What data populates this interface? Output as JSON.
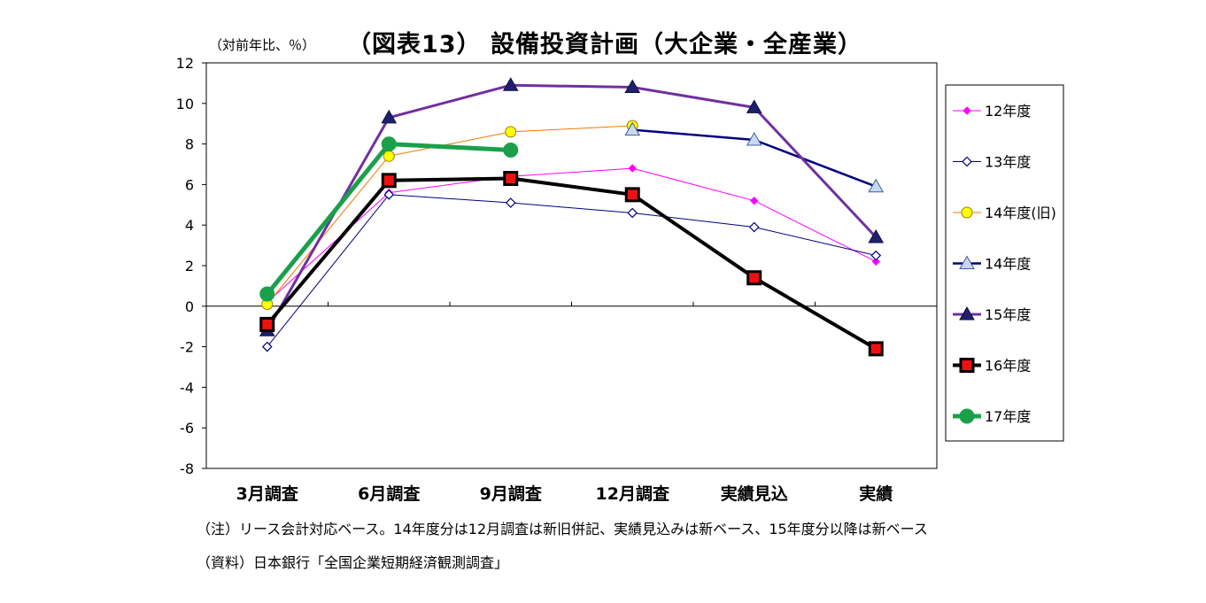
{
  "title": "（図表13） 設備投資計画（大企業・全産業）",
  "unit": "（対前年比、％）",
  "notes": [
    "（注）リース会計対応ベース。14年度分は12月調査は新旧併記、実績見込みは新ベース、15年度分以降は新ベース",
    "（資料）日本銀行「全国企業短期経済観測調査」"
  ],
  "chart_data": {
    "type": "line",
    "title": "（図表13） 設備投資計画（大企業・全産業）",
    "ylabel": "（対前年比、％）",
    "xlabel": "",
    "categories": [
      "3月調査",
      "6月調査",
      "9月調査",
      "12月調査",
      "実績見込",
      "実績"
    ],
    "ylim": [
      -8,
      12
    ],
    "yticks": [
      12,
      10,
      8,
      6,
      4,
      2,
      0,
      -2,
      -4,
      -6,
      -8
    ],
    "grid": false,
    "legend_position": "right",
    "series": [
      {
        "name": "12年度",
        "color": "#ff00ff",
        "marker": "diamond-filled",
        "values": [
          0.2,
          5.6,
          6.4,
          6.8,
          5.2,
          2.2
        ]
      },
      {
        "name": "13年度",
        "color": "#000080",
        "marker": "diamond-open",
        "values": [
          -2.0,
          5.5,
          5.1,
          4.6,
          3.9,
          2.5
        ]
      },
      {
        "name": "14年度(旧)",
        "color": "#f07800",
        "marker": "circle-yellow",
        "values": [
          0.1,
          7.4,
          8.6,
          8.9,
          null,
          null
        ]
      },
      {
        "name": "14年度",
        "color": "#000080",
        "marker": "triangle-open",
        "values": [
          null,
          null,
          null,
          8.7,
          8.2,
          5.9
        ]
      },
      {
        "name": "15年度",
        "color": "#7030a0",
        "marker": "triangle-filled",
        "values": [
          -1.2,
          9.3,
          10.9,
          10.8,
          9.8,
          3.4
        ]
      },
      {
        "name": "16年度",
        "color": "#000000",
        "marker": "square-red",
        "values": [
          -0.9,
          6.2,
          6.3,
          5.5,
          1.4,
          -2.1
        ]
      },
      {
        "name": "17年度",
        "color": "#1aa04a",
        "marker": "circle-green",
        "values": [
          0.6,
          8.0,
          7.7,
          null,
          null,
          null
        ]
      }
    ]
  }
}
